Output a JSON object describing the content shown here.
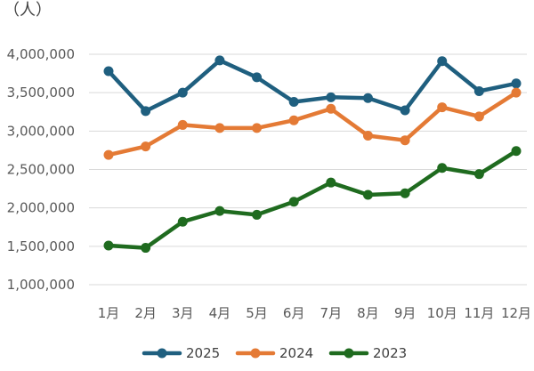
{
  "chart_data": {
    "type": "line",
    "title": "",
    "unit_label": "（人）",
    "xlabel": "",
    "ylabel": "",
    "categories": [
      "1月",
      "2月",
      "3月",
      "4月",
      "5月",
      "6月",
      "7月",
      "8月",
      "9月",
      "10月",
      "11月",
      "12月"
    ],
    "ylim": [
      1000000,
      4000000
    ],
    "yticks": [
      1000000,
      1500000,
      2000000,
      2500000,
      3000000,
      3500000,
      4000000
    ],
    "ytick_labels": [
      "1,000,000",
      "1,500,000",
      "2,000,000",
      "2,500,000",
      "3,000,000",
      "3,500,000",
      "4,000,000"
    ],
    "grid": true,
    "legend_position": "bottom",
    "series": [
      {
        "name": "2025",
        "color": "#1f5f7f",
        "values": [
          3780000,
          3260000,
          3500000,
          3920000,
          3700000,
          3380000,
          3440000,
          3430000,
          3270000,
          3910000,
          3520000,
          3620000
        ]
      },
      {
        "name": "2024",
        "color": "#e47a35",
        "values": [
          2690000,
          2800000,
          3080000,
          3040000,
          3040000,
          3140000,
          3290000,
          2940000,
          2880000,
          3310000,
          3190000,
          3500000
        ]
      },
      {
        "name": "2023",
        "color": "#1f6b1f",
        "values": [
          1510000,
          1480000,
          1820000,
          1960000,
          1910000,
          2080000,
          2330000,
          2170000,
          2190000,
          2520000,
          2440000,
          2740000
        ]
      }
    ]
  }
}
